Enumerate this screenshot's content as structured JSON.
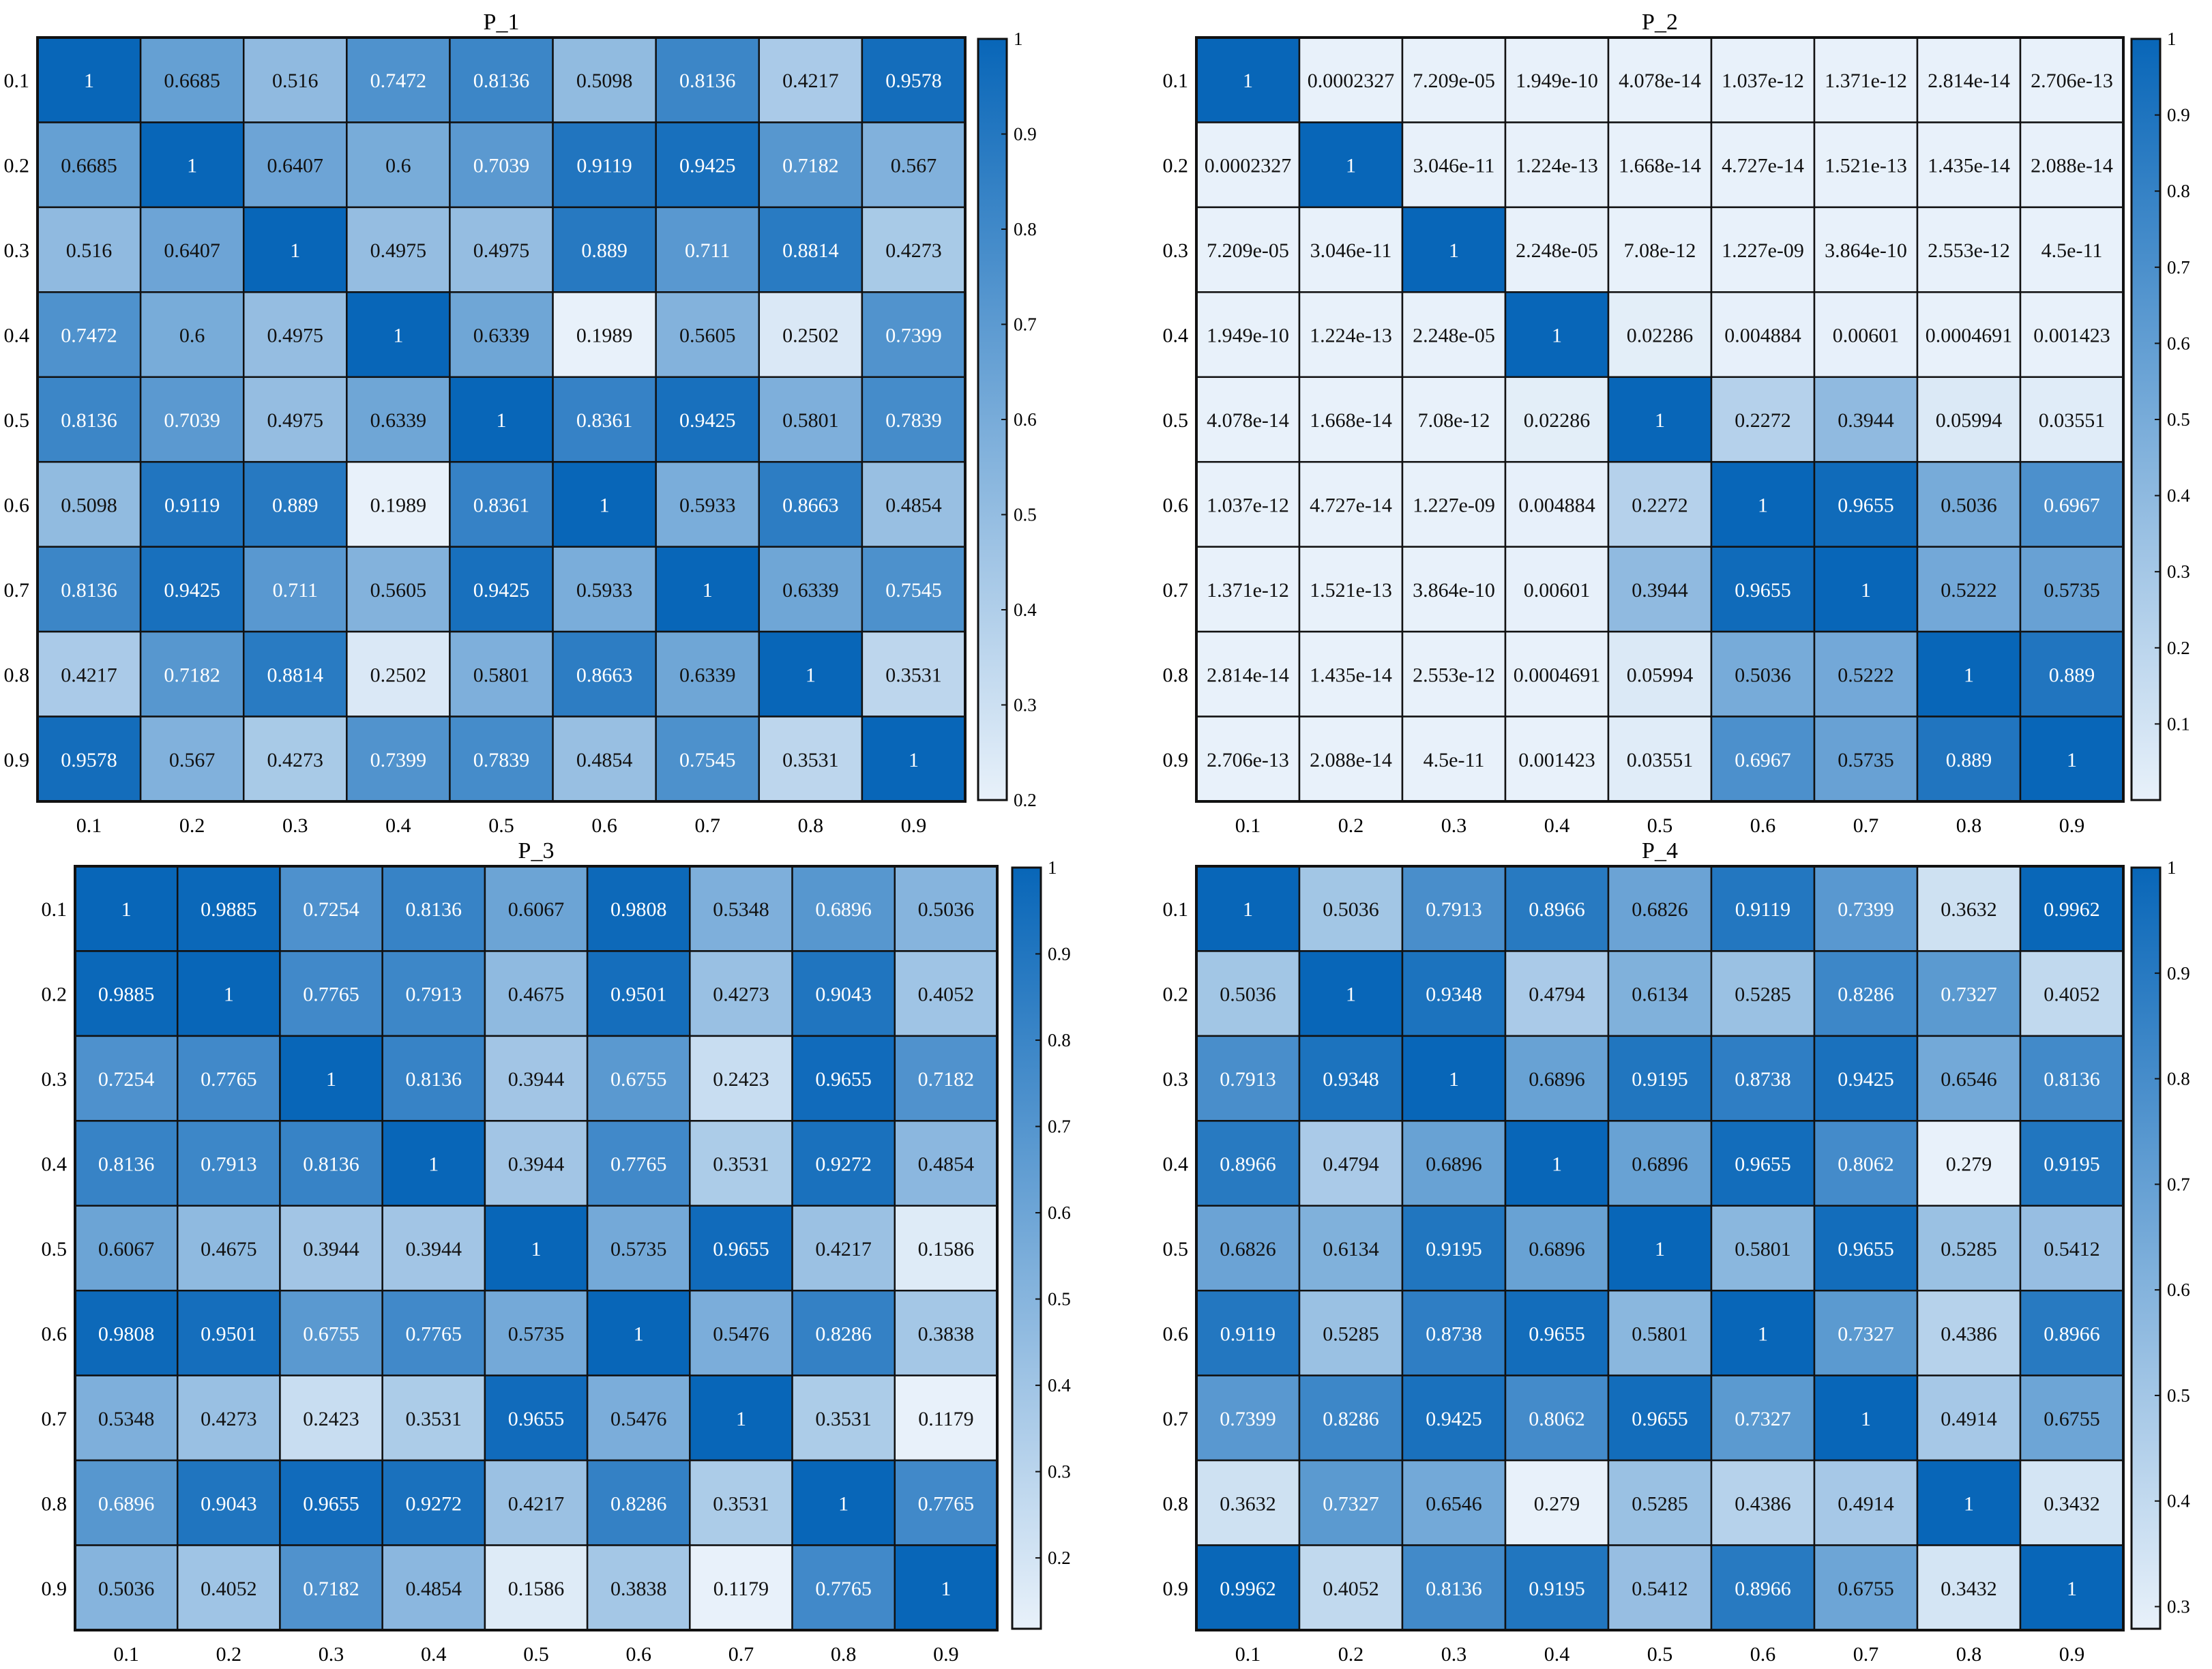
{
  "colors": {
    "low": "#e8f1fa",
    "high": "#0866b8",
    "grid": "#111111"
  },
  "chart_data": [
    {
      "type": "heatmap",
      "title": "P_1",
      "x_labels": [
        "0.1",
        "0.2",
        "0.3",
        "0.4",
        "0.5",
        "0.6",
        "0.7",
        "0.8",
        "0.9"
      ],
      "y_labels": [
        "0.1",
        "0.2",
        "0.3",
        "0.4",
        "0.5",
        "0.6",
        "0.7",
        "0.8",
        "0.9"
      ],
      "colorbar": {
        "min": 0.2,
        "max": 1,
        "ticks": [
          "0.2",
          "0.3",
          "0.4",
          "0.5",
          "0.6",
          "0.7",
          "0.8",
          "0.9",
          "1"
        ]
      },
      "cells": [
        [
          "1",
          "0.6685",
          "0.516",
          "0.7472",
          "0.8136",
          "0.5098",
          "0.8136",
          "0.4217",
          "0.9578"
        ],
        [
          "0.6685",
          "1",
          "0.6407",
          "0.6",
          "0.7039",
          "0.9119",
          "0.9425",
          "0.7182",
          "0.567"
        ],
        [
          "0.516",
          "0.6407",
          "1",
          "0.4975",
          "0.4975",
          "0.889",
          "0.711",
          "0.8814",
          "0.4273"
        ],
        [
          "0.7472",
          "0.6",
          "0.4975",
          "1",
          "0.6339",
          "0.1989",
          "0.5605",
          "0.2502",
          "0.7399"
        ],
        [
          "0.8136",
          "0.7039",
          "0.4975",
          "0.6339",
          "1",
          "0.8361",
          "0.9425",
          "0.5801",
          "0.7839"
        ],
        [
          "0.5098",
          "0.9119",
          "0.889",
          "0.1989",
          "0.8361",
          "1",
          "0.5933",
          "0.8663",
          "0.4854"
        ],
        [
          "0.8136",
          "0.9425",
          "0.711",
          "0.5605",
          "0.9425",
          "0.5933",
          "1",
          "0.6339",
          "0.7545"
        ],
        [
          "0.4217",
          "0.7182",
          "0.8814",
          "0.2502",
          "0.5801",
          "0.8663",
          "0.6339",
          "1",
          "0.3531"
        ],
        [
          "0.9578",
          "0.567",
          "0.4273",
          "0.7399",
          "0.7839",
          "0.4854",
          "0.7545",
          "0.3531",
          "1"
        ]
      ]
    },
    {
      "type": "heatmap",
      "title": "P_2",
      "x_labels": [
        "0.1",
        "0.2",
        "0.3",
        "0.4",
        "0.5",
        "0.6",
        "0.7",
        "0.8",
        "0.9"
      ],
      "y_labels": [
        "0.1",
        "0.2",
        "0.3",
        "0.4",
        "0.5",
        "0.6",
        "0.7",
        "0.8",
        "0.9"
      ],
      "colorbar": {
        "min": 0,
        "max": 1,
        "ticks": [
          "0.1",
          "0.2",
          "0.3",
          "0.4",
          "0.5",
          "0.6",
          "0.7",
          "0.8",
          "0.9",
          "1"
        ]
      },
      "cells": [
        [
          "1",
          "0.0002327",
          "7.209e-05",
          "1.949e-10",
          "4.078e-14",
          "1.037e-12",
          "1.371e-12",
          "2.814e-14",
          "2.706e-13"
        ],
        [
          "0.0002327",
          "1",
          "3.046e-11",
          "1.224e-13",
          "1.668e-14",
          "4.727e-14",
          "1.521e-13",
          "1.435e-14",
          "2.088e-14"
        ],
        [
          "7.209e-05",
          "3.046e-11",
          "1",
          "2.248e-05",
          "7.08e-12",
          "1.227e-09",
          "3.864e-10",
          "2.553e-12",
          "4.5e-11"
        ],
        [
          "1.949e-10",
          "1.224e-13",
          "2.248e-05",
          "1",
          "0.02286",
          "0.004884",
          "0.00601",
          "0.0004691",
          "0.001423"
        ],
        [
          "4.078e-14",
          "1.668e-14",
          "7.08e-12",
          "0.02286",
          "1",
          "0.2272",
          "0.3944",
          "0.05994",
          "0.03551"
        ],
        [
          "1.037e-12",
          "4.727e-14",
          "1.227e-09",
          "0.004884",
          "0.2272",
          "1",
          "0.9655",
          "0.5036",
          "0.6967"
        ],
        [
          "1.371e-12",
          "1.521e-13",
          "3.864e-10",
          "0.00601",
          "0.3944",
          "0.9655",
          "1",
          "0.5222",
          "0.5735"
        ],
        [
          "2.814e-14",
          "1.435e-14",
          "2.553e-12",
          "0.0004691",
          "0.05994",
          "0.5036",
          "0.5222",
          "1",
          "0.889"
        ],
        [
          "2.706e-13",
          "2.088e-14",
          "4.5e-11",
          "0.001423",
          "0.03551",
          "0.6967",
          "0.5735",
          "0.889",
          "1"
        ]
      ]
    },
    {
      "type": "heatmap",
      "title": "P_3",
      "x_labels": [
        "0.1",
        "0.2",
        "0.3",
        "0.4",
        "0.5",
        "0.6",
        "0.7",
        "0.8",
        "0.9"
      ],
      "y_labels": [
        "0.1",
        "0.2",
        "0.3",
        "0.4",
        "0.5",
        "0.6",
        "0.7",
        "0.8",
        "0.9"
      ],
      "colorbar": {
        "min": 0.1179,
        "max": 1,
        "ticks": [
          "0.2",
          "0.3",
          "0.4",
          "0.5",
          "0.6",
          "0.7",
          "0.8",
          "0.9",
          "1"
        ]
      },
      "cells": [
        [
          "1",
          "0.9885",
          "0.7254",
          "0.8136",
          "0.6067",
          "0.9808",
          "0.5348",
          "0.6896",
          "0.5036"
        ],
        [
          "0.9885",
          "1",
          "0.7765",
          "0.7913",
          "0.4675",
          "0.9501",
          "0.4273",
          "0.9043",
          "0.4052"
        ],
        [
          "0.7254",
          "0.7765",
          "1",
          "0.8136",
          "0.3944",
          "0.6755",
          "0.2423",
          "0.9655",
          "0.7182"
        ],
        [
          "0.8136",
          "0.7913",
          "0.8136",
          "1",
          "0.3944",
          "0.7765",
          "0.3531",
          "0.9272",
          "0.4854"
        ],
        [
          "0.6067",
          "0.4675",
          "0.3944",
          "0.3944",
          "1",
          "0.5735",
          "0.9655",
          "0.4217",
          "0.1586"
        ],
        [
          "0.9808",
          "0.9501",
          "0.6755",
          "0.7765",
          "0.5735",
          "1",
          "0.5476",
          "0.8286",
          "0.3838"
        ],
        [
          "0.5348",
          "0.4273",
          "0.2423",
          "0.3531",
          "0.9655",
          "0.5476",
          "1",
          "0.3531",
          "0.1179"
        ],
        [
          "0.6896",
          "0.9043",
          "0.9655",
          "0.9272",
          "0.4217",
          "0.8286",
          "0.3531",
          "1",
          "0.7765"
        ],
        [
          "0.5036",
          "0.4052",
          "0.7182",
          "0.4854",
          "0.1586",
          "0.3838",
          "0.1179",
          "0.7765",
          "1"
        ]
      ]
    },
    {
      "type": "heatmap",
      "title": "P_4",
      "x_labels": [
        "0.1",
        "0.2",
        "0.3",
        "0.4",
        "0.5",
        "0.6",
        "0.7",
        "0.8",
        "0.9"
      ],
      "y_labels": [
        "0.1",
        "0.2",
        "0.3",
        "0.4",
        "0.5",
        "0.6",
        "0.7",
        "0.8",
        "0.9"
      ],
      "colorbar": {
        "min": 0.279,
        "max": 1,
        "ticks": [
          "0.3",
          "0.4",
          "0.5",
          "0.6",
          "0.7",
          "0.8",
          "0.9",
          "1"
        ]
      },
      "cells": [
        [
          "1",
          "0.5036",
          "0.7913",
          "0.8966",
          "0.6826",
          "0.9119",
          "0.7399",
          "0.3632",
          "0.9962"
        ],
        [
          "0.5036",
          "1",
          "0.9348",
          "0.4794",
          "0.6134",
          "0.5285",
          "0.8286",
          "0.7327",
          "0.4052"
        ],
        [
          "0.7913",
          "0.9348",
          "1",
          "0.6896",
          "0.9195",
          "0.8738",
          "0.9425",
          "0.6546",
          "0.8136"
        ],
        [
          "0.8966",
          "0.4794",
          "0.6896",
          "1",
          "0.6896",
          "0.9655",
          "0.8062",
          "0.279",
          "0.9195"
        ],
        [
          "0.6826",
          "0.6134",
          "0.9195",
          "0.6896",
          "1",
          "0.5801",
          "0.9655",
          "0.5285",
          "0.5412"
        ],
        [
          "0.9119",
          "0.5285",
          "0.8738",
          "0.9655",
          "0.5801",
          "1",
          "0.7327",
          "0.4386",
          "0.8966"
        ],
        [
          "0.7399",
          "0.8286",
          "0.9425",
          "0.8062",
          "0.9655",
          "0.7327",
          "1",
          "0.4914",
          "0.6755"
        ],
        [
          "0.3632",
          "0.7327",
          "0.6546",
          "0.279",
          "0.5285",
          "0.4386",
          "0.4914",
          "1",
          "0.3432"
        ],
        [
          "0.9962",
          "0.4052",
          "0.8136",
          "0.9195",
          "0.5412",
          "0.8966",
          "0.6755",
          "0.3432",
          "1"
        ]
      ]
    }
  ]
}
